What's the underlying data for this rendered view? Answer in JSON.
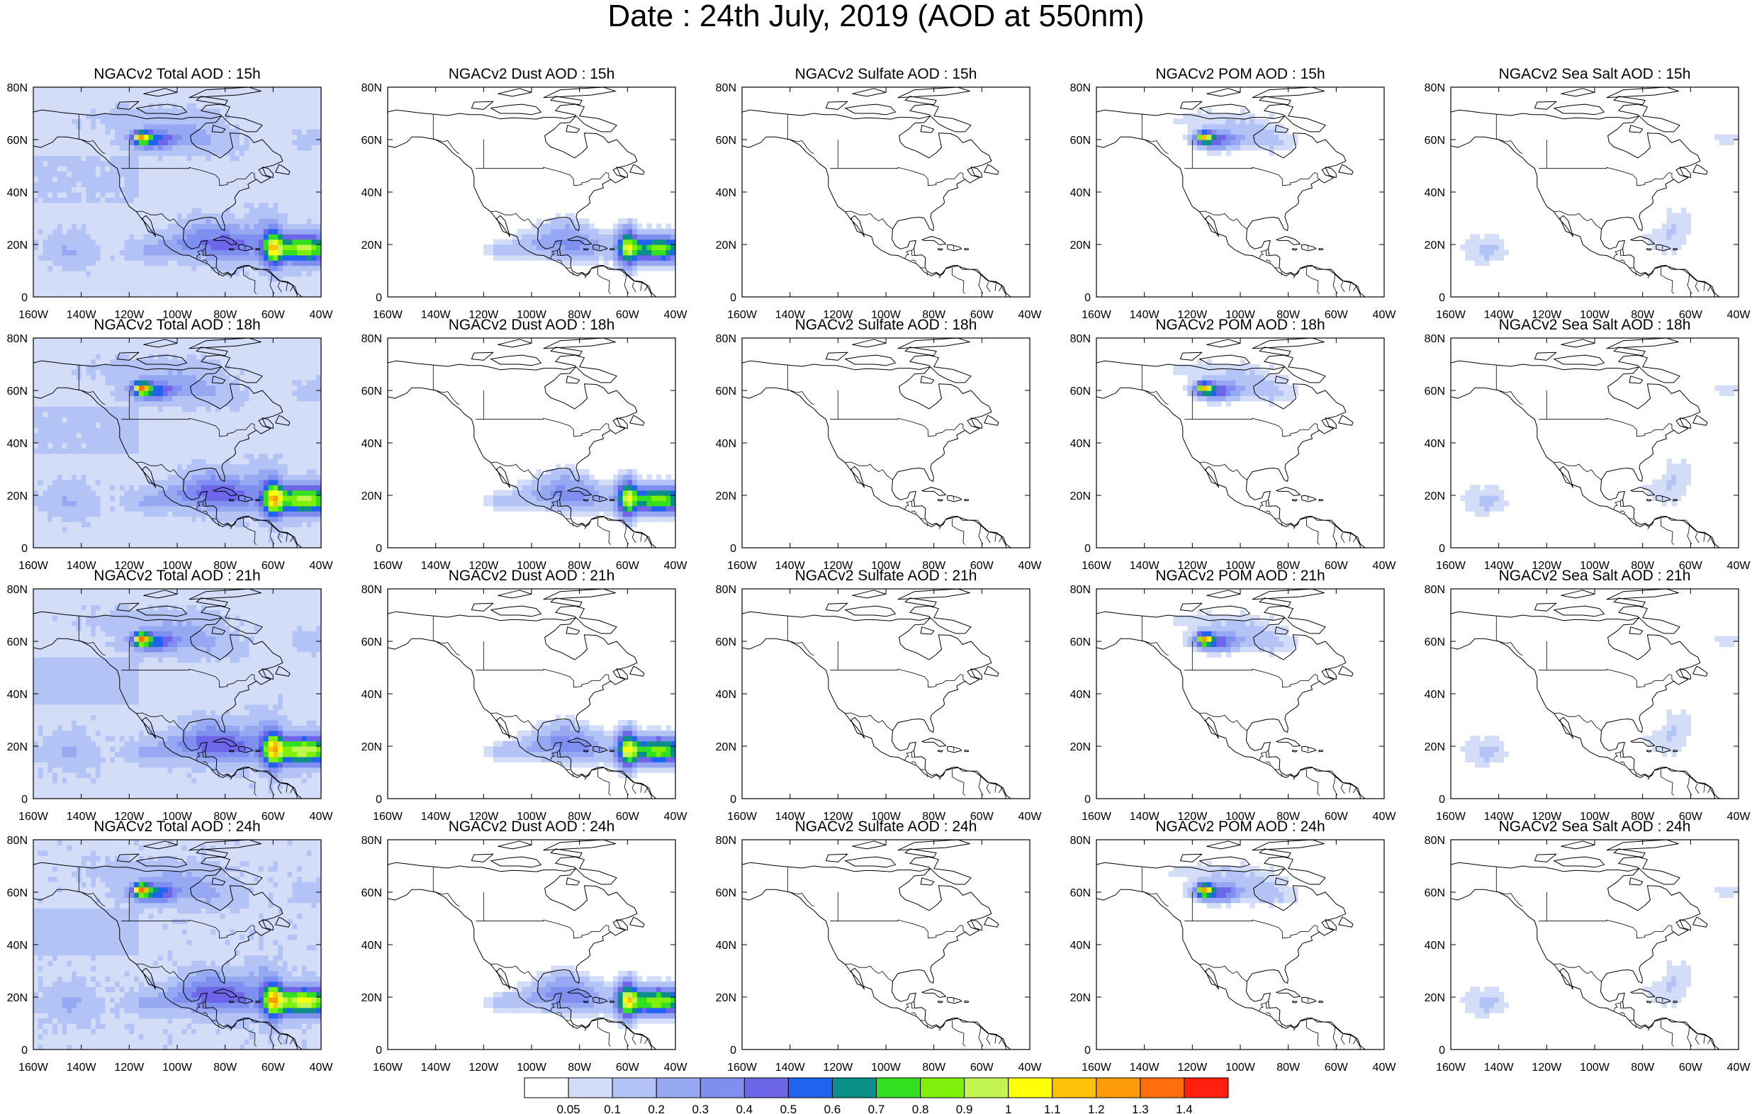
{
  "figure": {
    "title": "Date : 24th July, 2019 (AOD at 550nm)"
  },
  "axes": {
    "x_ticks": [
      "160W",
      "140W",
      "120W",
      "100W",
      "80W",
      "60W",
      "40W"
    ],
    "y_ticks": [
      "80N",
      "60N",
      "40N",
      "20N",
      "0"
    ]
  },
  "panels": [
    {
      "title": "NGACv2 Total AOD : 15h",
      "species": "total",
      "hour": 15
    },
    {
      "title": "NGACv2 Dust AOD : 15h",
      "species": "dust",
      "hour": 15
    },
    {
      "title": "NGACv2 Sulfate AOD : 15h",
      "species": "sulfate",
      "hour": 15
    },
    {
      "title": "NGACv2 POM AOD : 15h",
      "species": "pom",
      "hour": 15
    },
    {
      "title": "NGACv2 Sea Salt AOD : 15h",
      "species": "seasalt",
      "hour": 15
    },
    {
      "title": "NGACv2 Total AOD : 18h",
      "species": "total",
      "hour": 18
    },
    {
      "title": "NGACv2 Dust AOD : 18h",
      "species": "dust",
      "hour": 18
    },
    {
      "title": "NGACv2 Sulfate AOD : 18h",
      "species": "sulfate",
      "hour": 18
    },
    {
      "title": "NGACv2 POM AOD : 18h",
      "species": "pom",
      "hour": 18
    },
    {
      "title": "NGACv2 Sea Salt AOD : 18h",
      "species": "seasalt",
      "hour": 18
    },
    {
      "title": "NGACv2 Total AOD : 21h",
      "species": "total",
      "hour": 21
    },
    {
      "title": "NGACv2 Dust AOD : 21h",
      "species": "dust",
      "hour": 21
    },
    {
      "title": "NGACv2 Sulfate AOD : 21h",
      "species": "sulfate",
      "hour": 21
    },
    {
      "title": "NGACv2 POM AOD : 21h",
      "species": "pom",
      "hour": 21
    },
    {
      "title": "NGACv2 Sea Salt AOD : 21h",
      "species": "seasalt",
      "hour": 21
    },
    {
      "title": "NGACv2 Total AOD : 24h",
      "species": "total",
      "hour": 24
    },
    {
      "title": "NGACv2 Dust AOD : 24h",
      "species": "dust",
      "hour": 24
    },
    {
      "title": "NGACv2 Sulfate AOD : 24h",
      "species": "sulfate",
      "hour": 24
    },
    {
      "title": "NGACv2 POM AOD : 24h",
      "species": "pom",
      "hour": 24
    },
    {
      "title": "NGACv2 Sea Salt  AOD : 24h",
      "species": "seasalt",
      "hour": 24
    }
  ],
  "colorbar": {
    "labels": [
      "0.05",
      "0.1",
      "0.2",
      "0.3",
      "0.4",
      "0.5",
      "0.6",
      "0.7",
      "0.8",
      "0.9",
      "1",
      "1.1",
      "1.2",
      "1.3",
      "1.4"
    ],
    "colors": [
      "#ffffff",
      "#d3ddf8",
      "#b3c3f5",
      "#96a8f2",
      "#7f8ff0",
      "#6d66e8",
      "#1f63f0",
      "#0c8f88",
      "#33e020",
      "#7ff00a",
      "#c3f550",
      "#ffff0a",
      "#ffc00a",
      "#ff9a0a",
      "#ff6e0a",
      "#ff2010"
    ]
  },
  "legend_colors": {
    "coast": "#000000"
  }
}
